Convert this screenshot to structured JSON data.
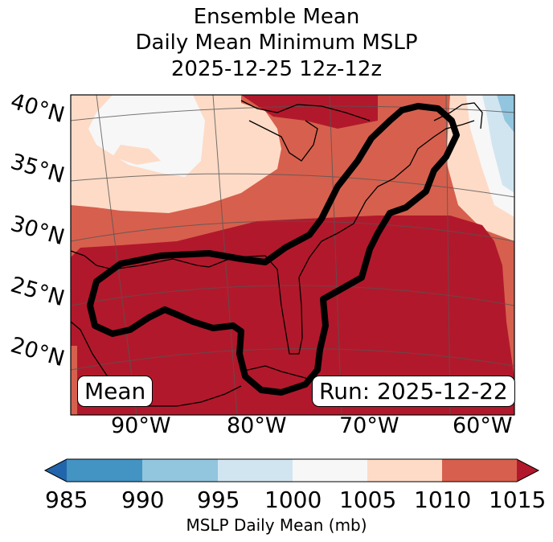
{
  "title": {
    "line1": "Ensemble Mean",
    "line2": "Daily Mean Minimum MSLP",
    "line3": "2025-12-25 12z-12z"
  },
  "map": {
    "latitude_labels": [
      "40°N",
      "35°N",
      "30°N",
      "25°N",
      "20°N"
    ],
    "longitude_labels": [
      "90°W",
      "80°W",
      "70°W",
      "60°W"
    ],
    "mean_box": "Mean",
    "run_box": "Run: 2025-12-22",
    "outline_color": "#000000"
  },
  "colorbar": {
    "label": "MSLP Daily Mean (mb)",
    "ticks": [
      "985",
      "990",
      "995",
      "1000",
      "1005",
      "1010",
      "1015"
    ],
    "colors": [
      "#2166ac",
      "#4393c3",
      "#92c5de",
      "#d1e5f0",
      "#f7f7f7",
      "#fddbc7",
      "#d6604d",
      "#b2182b"
    ]
  }
}
